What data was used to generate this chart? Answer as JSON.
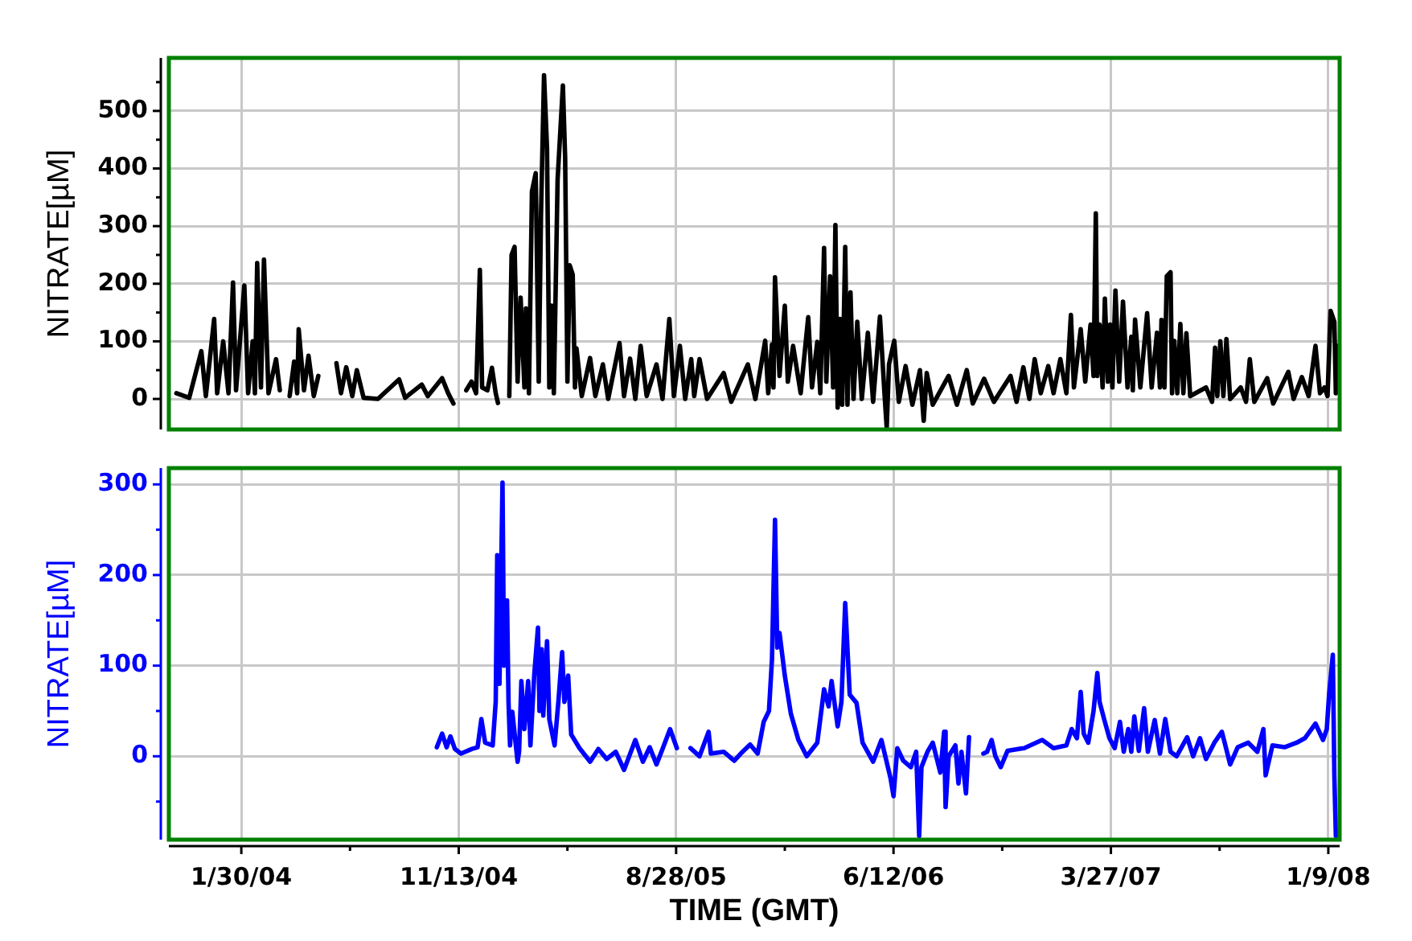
{
  "chart_data": [
    {
      "type": "line",
      "ylabel": "NITRATE[µM]",
      "x": [
        "2003-11-05",
        "2003-11-22",
        "2003-12-08",
        "2003-12-14",
        "2003-12-25",
        "2003-12-29",
        "2004-01-06",
        "2004-01-13",
        "2004-01-19",
        "2004-01-23",
        "2004-02-03",
        "2004-02-08",
        "2004-02-14",
        "2004-02-17",
        "2004-02-20",
        "2004-02-25",
        "2004-02-29",
        "2004-03-06",
        "2004-03-16",
        "2004-03-21",
        "2004-03-28",
        "2004-04-03",
        "2004-04-09",
        "2004-04-13",
        "2004-04-15",
        "2004-04-22",
        "2004-04-28",
        "2004-05-05",
        "2004-05-11",
        "2004-05-20",
        "2004-06-04",
        "2004-06-10",
        "2004-06-17",
        "2004-06-25",
        "2004-07-01",
        "2004-07-10",
        "2004-07-29",
        "2004-08-26",
        "2004-09-03",
        "2004-09-25",
        "2004-10-03",
        "2004-10-22",
        "2004-10-30",
        "2004-11-06",
        "2004-11-14",
        "2004-11-23",
        "2004-11-30",
        "2004-12-06",
        "2004-12-11",
        "2004-12-14",
        "2004-12-21",
        "2004-12-27",
        "2005-01-01",
        "2005-01-04",
        "2005-01-12",
        "2005-01-19",
        "2005-01-22",
        "2005-01-26",
        "2005-01-30",
        "2005-02-03",
        "2005-02-08",
        "2005-02-10",
        "2005-02-14",
        "2005-02-18",
        "2005-02-23",
        "2005-02-27",
        "2005-03-02",
        "2005-03-06",
        "2005-03-10",
        "2005-03-13",
        "2005-03-16",
        "2005-03-19",
        "2005-03-24",
        "2005-03-31",
        "2005-04-03",
        "2005-04-06",
        "2005-04-09",
        "2005-04-13",
        "2005-04-16",
        "2005-04-18",
        "2005-04-25",
        "2005-05-06",
        "2005-05-13",
        "2005-05-23",
        "2005-05-30",
        "2005-06-14",
        "2005-06-20",
        "2005-06-28",
        "2005-07-05",
        "2005-07-12",
        "2005-07-20",
        "2005-08-02",
        "2005-08-10",
        "2005-08-19",
        "2005-08-25",
        "2005-09-02",
        "2005-09-09",
        "2005-09-17",
        "2005-09-21",
        "2005-09-28",
        "2005-10-08",
        "2005-10-30",
        "2005-11-09",
        "2005-12-01",
        "2005-12-11",
        "2005-12-24",
        "2005-12-28",
        "2006-01-02",
        "2006-01-04",
        "2006-01-06",
        "2006-01-12",
        "2006-01-19",
        "2006-01-23",
        "2006-01-30",
        "2006-02-09",
        "2006-02-19",
        "2006-02-24",
        "2006-03-03",
        "2006-03-07",
        "2006-03-12",
        "2006-03-15",
        "2006-03-20",
        "2006-03-24",
        "2006-03-27",
        "2006-03-30",
        "2006-04-02",
        "2006-04-05",
        "2006-04-09",
        "2006-04-12",
        "2006-04-16",
        "2006-04-20",
        "2006-04-25",
        "2006-05-01",
        "2006-05-09",
        "2006-05-16",
        "2006-05-25",
        "2006-05-31",
        "2006-06-03",
        "2006-06-06",
        "2006-06-13",
        "2006-06-19",
        "2006-06-28",
        "2006-07-07",
        "2006-07-17",
        "2006-07-22",
        "2006-07-26",
        "2006-08-03",
        "2006-08-24",
        "2006-09-04",
        "2006-09-17",
        "2006-09-25",
        "2006-10-10",
        "2006-10-23",
        "2006-11-14",
        "2006-11-22",
        "2006-12-01",
        "2006-12-09",
        "2006-12-16",
        "2006-12-24",
        "2007-01-03",
        "2007-01-10",
        "2007-01-19",
        "2007-01-27",
        "2007-02-02",
        "2007-02-06",
        "2007-02-15",
        "2007-02-21",
        "2007-02-28",
        "2007-03-04",
        "2007-03-07",
        "2007-03-09",
        "2007-03-12",
        "2007-03-16",
        "2007-03-19",
        "2007-03-23",
        "2007-03-26",
        "2007-03-29",
        "2007-04-02",
        "2007-04-07",
        "2007-04-12",
        "2007-04-18",
        "2007-04-23",
        "2007-04-25",
        "2007-04-28",
        "2007-05-05",
        "2007-05-14",
        "2007-05-20",
        "2007-05-27",
        "2007-05-31",
        "2007-06-02",
        "2007-06-06",
        "2007-06-09",
        "2007-06-14",
        "2007-06-16",
        "2007-06-19",
        "2007-06-23",
        "2007-06-27",
        "2007-07-01",
        "2007-07-05",
        "2007-07-10",
        "2007-07-31",
        "2007-08-08",
        "2007-08-12",
        "2007-08-15",
        "2007-08-19",
        "2007-08-23",
        "2007-08-27",
        "2007-09-01",
        "2007-09-15",
        "2007-09-22",
        "2007-09-27",
        "2007-10-03",
        "2007-10-20",
        "2007-10-28",
        "2007-11-17",
        "2007-11-24",
        "2007-12-05",
        "2007-12-14",
        "2007-12-23",
        "2007-12-29",
        "2008-01-04",
        "2008-01-08",
        "2008-01-12",
        "2008-01-17",
        "2008-01-19",
        "2008-01-21"
      ],
      "series": [
        {
          "color": "#000000",
          "values": [
            10,
            2,
            83,
            5,
            139,
            10,
            100,
            10,
            202,
            15,
            197,
            10,
            100,
            10,
            236,
            20,
            242,
            10,
            69,
            15,
            null,
            5,
            65,
            10,
            121,
            15,
            75,
            5,
            40,
            null,
            62,
            10,
            55,
            5,
            50,
            2,
            0,
            34,
            2,
            25,
            5,
            36,
            10,
            -8,
            null,
            15,
            30,
            10,
            224,
            20,
            15,
            54,
            10,
            -7,
            null,
            5,
            250,
            264,
            30,
            176,
            20,
            157,
            10,
            360,
            392,
            30,
            320,
            562,
            435,
            20,
            162,
            10,
            381,
            544,
            418,
            30,
            232,
            216,
            20,
            88,
            5,
            71,
            5,
            60,
            0,
            97,
            5,
            70,
            0,
            92,
            5,
            60,
            0,
            139,
            5,
            92,
            0,
            69,
            5,
            69,
            0,
            45,
            -5,
            60,
            0,
            101,
            10,
            95,
            20,
            211,
            40,
            162,
            30,
            92,
            10,
            142,
            20,
            99,
            10,
            262,
            30,
            213,
            20,
            302,
            -15,
            139,
            -10,
            264,
            -10,
            185,
            0,
            134,
            0,
            115,
            -5,
            143,
            10,
            -50,
            60,
            101,
            -5,
            57,
            -10,
            50,
            -38,
            45,
            -10,
            40,
            -10,
            50,
            -8,
            35,
            -5,
            40,
            -5,
            55,
            0,
            69,
            10,
            57,
            10,
            69,
            10,
            146,
            20,
            121,
            30,
            129,
            40,
            322,
            40,
            129,
            20,
            174,
            30,
            129,
            20,
            188,
            30,
            169,
            20,
            108,
            15,
            138,
            20,
            149,
            20,
            115,
            20,
            137,
            20,
            213,
            220,
            10,
            101,
            10,
            130,
            10,
            114,
            5,
            20,
            -5,
            89,
            5,
            100,
            5,
            104,
            0,
            20,
            -5,
            69,
            -5,
            36,
            -8,
            47,
            0,
            38,
            5,
            92,
            10,
            20,
            5,
            153,
            134,
            10,
            92
          ]
        }
      ],
      "xlim": [
        "2003-10-26",
        "2008-01-24"
      ],
      "ylim": [
        -53,
        592
      ],
      "xticks": [
        {
          "value": "2004-01-30",
          "label": null
        },
        {
          "value": "2004-11-13",
          "label": null
        },
        {
          "value": "2005-08-28",
          "label": null
        },
        {
          "value": "2006-06-12",
          "label": null
        },
        {
          "value": "2007-03-27",
          "label": null
        },
        {
          "value": "2008-01-09",
          "label": null
        }
      ],
      "yticks": [
        0,
        {
          "value": 50,
          "label": null
        },
        100,
        {
          "value": 150,
          "label": null
        },
        200,
        {
          "value": 250,
          "label": null
        },
        300,
        {
          "value": 350,
          "label": null
        },
        400,
        {
          "value": 450,
          "label": null
        },
        500,
        {
          "value": 550,
          "label": null
        }
      ],
      "grid": true,
      "tick_labels": "y"
    },
    {
      "type": "line",
      "xlabel": "TIME (GMT)",
      "ylabel": "NITRATE[µM]",
      "x": [
        "2004-10-15",
        "2004-10-22",
        "2004-10-28",
        "2004-11-02",
        "2004-11-08",
        "2004-11-16",
        "2004-11-30",
        "2004-12-08",
        "2004-12-13",
        "2004-12-18",
        "2004-12-28",
        "2005-01-01",
        "2005-01-03",
        "2005-01-06",
        "2005-01-10",
        "2005-01-12",
        "2005-01-16",
        "2005-01-18",
        "2005-01-20",
        "2005-01-23",
        "2005-01-30",
        "2005-02-01",
        "2005-02-04",
        "2005-02-08",
        "2005-02-13",
        "2005-02-16",
        "2005-02-21",
        "2005-02-26",
        "2005-02-28",
        "2005-03-03",
        "2005-03-05",
        "2005-03-10",
        "2005-03-13",
        "2005-03-20",
        "2005-03-25",
        "2005-03-30",
        "2005-04-02",
        "2005-04-07",
        "2005-04-11",
        "2005-04-22",
        "2005-05-06",
        "2005-05-17",
        "2005-05-28",
        "2005-06-09",
        "2005-06-20",
        "2005-07-05",
        "2005-07-15",
        "2005-07-24",
        "2005-08-02",
        "2005-08-10",
        "2005-08-20",
        "2005-08-29",
        "2005-09-06",
        "2005-09-16",
        "2005-09-28",
        "2005-10-10",
        "2005-10-13",
        "2005-10-30",
        "2005-11-13",
        "2005-11-24",
        "2005-12-04",
        "2005-12-14",
        "2005-12-22",
        "2005-12-29",
        "2006-01-02",
        "2006-01-06",
        "2006-01-09",
        "2006-01-12",
        "2006-01-19",
        "2006-01-27",
        "2006-02-06",
        "2006-02-17",
        "2006-03-03",
        "2006-03-12",
        "2006-03-18",
        "2006-03-22",
        "2006-03-30",
        "2006-04-04",
        "2006-04-09",
        "2006-04-15",
        "2006-04-24",
        "2006-05-02",
        "2006-05-16",
        "2006-05-27",
        "2006-06-08",
        "2006-06-12",
        "2006-06-17",
        "2006-06-25",
        "2006-07-05",
        "2006-07-12",
        "2006-07-16",
        "2006-07-19",
        "2006-07-27",
        "2006-08-03",
        "2006-08-13",
        "2006-08-18",
        "2006-08-20",
        "2006-08-24",
        "2006-09-02",
        "2006-09-06",
        "2006-09-10",
        "2006-09-16",
        "2006-09-20",
        "2006-10-01",
        "2006-10-09",
        "2006-10-14",
        "2006-10-20",
        "2006-10-25",
        "2006-11-01",
        "2006-11-10",
        "2006-12-02",
        "2006-12-26",
        "2007-01-10",
        "2007-01-27",
        "2007-02-03",
        "2007-02-10",
        "2007-02-15",
        "2007-02-19",
        "2007-02-25",
        "2007-03-04",
        "2007-03-09",
        "2007-03-12",
        "2007-03-18",
        "2007-03-25",
        "2007-04-01",
        "2007-04-08",
        "2007-04-13",
        "2007-04-19",
        "2007-04-23",
        "2007-04-27",
        "2007-05-03",
        "2007-05-10",
        "2007-05-15",
        "2007-05-24",
        "2007-05-31",
        "2007-06-07",
        "2007-06-14",
        "2007-06-22",
        "2007-07-06",
        "2007-07-14",
        "2007-07-23",
        "2007-07-31",
        "2007-08-11",
        "2007-08-21",
        "2007-09-01",
        "2007-09-11",
        "2007-09-25",
        "2007-10-07",
        "2007-10-15",
        "2007-10-18",
        "2007-10-27",
        "2007-11-12",
        "2007-11-28",
        "2007-12-09",
        "2007-12-23",
        "2008-01-02",
        "2008-01-07",
        "2008-01-10",
        "2008-01-15",
        "2008-01-17",
        "2008-01-19"
      ],
      "series": [
        {
          "color": "#0000ff",
          "values": [
            10,
            25,
            10,
            22,
            8,
            3,
            8,
            10,
            41,
            15,
            12,
            60,
            222,
            80,
            302,
            100,
            172,
            59,
            12,
            49,
            -6,
            5,
            83,
            30,
            83,
            12,
            89,
            142,
            50,
            118,
            45,
            127,
            41,
            12,
            60,
            115,
            60,
            89,
            24,
            9,
            -6,
            8,
            -3,
            5,
            -15,
            18,
            -6,
            10,
            -9,
            8,
            30,
            9,
            null,
            9,
            0,
            27,
            3,
            5,
            -5,
            5,
            13,
            3,
            38,
            50,
            107,
            261,
            120,
            136,
            89,
            47,
            18,
            0,
            15,
            74,
            55,
            83,
            33,
            60,
            169,
            68,
            59,
            15,
            -6,
            18,
            -24,
            -44,
            9,
            -5,
            -12,
            5,
            -88,
            -12,
            5,
            15,
            -18,
            27,
            -56,
            0,
            12,
            -30,
            5,
            -41,
            21,
            null,
            3,
            5,
            18,
            0,
            -12,
            6,
            9,
            18,
            9,
            12,
            30,
            20,
            71,
            25,
            15,
            50,
            92,
            60,
            41,
            20,
            9,
            38,
            5,
            30,
            5,
            44,
            6,
            53,
            5,
            40,
            3,
            41,
            5,
            0,
            21,
            0,
            20,
            -3,
            15,
            27,
            -9,
            10,
            15,
            5,
            30,
            -21,
            12,
            10,
            15,
            20,
            36,
            18,
            30,
            68,
            112,
            -21,
            -88
          ]
        }
      ],
      "xlim": [
        "2003-10-26",
        "2008-01-24"
      ],
      "ylim": [
        -92,
        318
      ],
      "xticks": [
        {
          "value": "2004-01-30",
          "label": "1/30/04"
        },
        {
          "value": "2004-06-22",
          "label": null
        },
        {
          "value": "2004-11-13",
          "label": "11/13/04"
        },
        {
          "value": "2005-04-06",
          "label": null
        },
        {
          "value": "2005-08-28",
          "label": "8/28/05"
        },
        {
          "value": "2006-01-19",
          "label": null
        },
        {
          "value": "2006-06-12",
          "label": "6/12/06"
        },
        {
          "value": "2006-11-03",
          "label": null
        },
        {
          "value": "2007-03-27",
          "label": "3/27/07"
        },
        {
          "value": "2007-08-18",
          "label": null
        },
        {
          "value": "2008-01-09",
          "label": "1/9/08"
        }
      ],
      "yticks": [
        {
          "value": -50,
          "label": null
        },
        0,
        {
          "value": 50,
          "label": null
        },
        100,
        {
          "value": 150,
          "label": null
        },
        200,
        {
          "value": 250,
          "label": null
        },
        300
      ],
      "grid": true
    }
  ]
}
